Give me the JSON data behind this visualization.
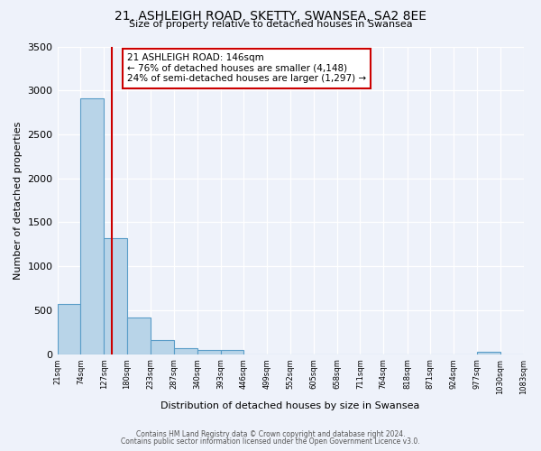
{
  "title": "21, ASHLEIGH ROAD, SKETTY, SWANSEA, SA2 8EE",
  "subtitle": "Size of property relative to detached houses in Swansea",
  "xlabel": "Distribution of detached houses by size in Swansea",
  "ylabel": "Number of detached properties",
  "bar_edges": [
    21,
    74,
    127,
    180,
    233,
    287,
    340,
    393,
    446,
    499,
    552,
    605,
    658,
    711,
    764,
    818,
    871,
    924,
    977,
    1030,
    1083
  ],
  "bar_heights": [
    575,
    2910,
    1315,
    415,
    165,
    70,
    50,
    50,
    0,
    0,
    0,
    0,
    0,
    0,
    0,
    0,
    0,
    0,
    25,
    0
  ],
  "bar_color": "#b8d4e8",
  "bar_edgecolor": "#5a9dc8",
  "property_size": 146,
  "red_line_color": "#cc0000",
  "annotation_box_edgecolor": "#cc0000",
  "annotation_text_line1": "21 ASHLEIGH ROAD: 146sqm",
  "annotation_text_line2": "← 76% of detached houses are smaller (4,148)",
  "annotation_text_line3": "24% of semi-detached houses are larger (1,297) →",
  "ylim": [
    0,
    3500
  ],
  "tick_labels": [
    "21sqm",
    "74sqm",
    "127sqm",
    "180sqm",
    "233sqm",
    "287sqm",
    "340sqm",
    "393sqm",
    "446sqm",
    "499sqm",
    "552sqm",
    "605sqm",
    "658sqm",
    "711sqm",
    "764sqm",
    "818sqm",
    "871sqm",
    "924sqm",
    "977sqm",
    "1030sqm",
    "1083sqm"
  ],
  "footnote1": "Contains HM Land Registry data © Crown copyright and database right 2024.",
  "footnote2": "Contains public sector information licensed under the Open Government Licence v3.0.",
  "bg_color": "#eef2fa",
  "plot_bg_color": "#eef2fa"
}
